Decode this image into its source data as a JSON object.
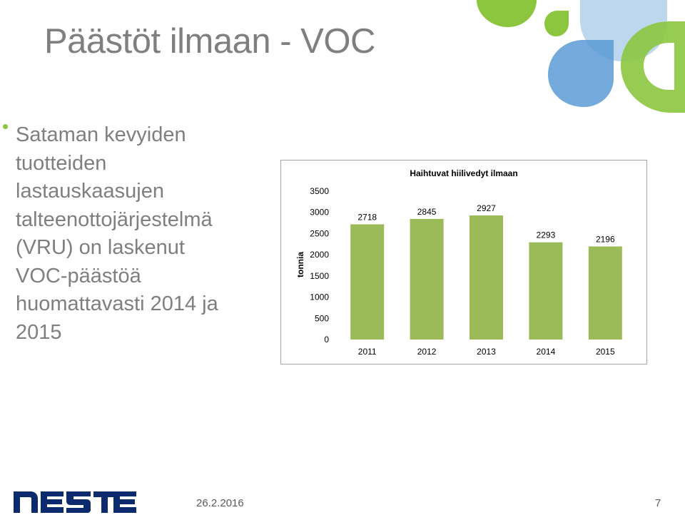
{
  "slide": {
    "title": "Päästöt ilmaan - VOC",
    "body": "Sataman kevyiden\ntuotteiden\nlastauskaasujen\ntalteenottojärjestelmä\n(VRU) on laskenut\nVOC-päästöä\nhuomattavasti 2014 ja\n2015",
    "date": "26.2.2016",
    "page_number": "7",
    "logo_text": "NESTE"
  },
  "colors": {
    "bar": "#9bbb59",
    "title": "#7f7f7f",
    "logo": "#0c2a6e",
    "accent_green": "#8cc63f",
    "accent_blue": "#5b9bd5"
  },
  "chart_data": {
    "type": "bar",
    "title": "Haihtuvat hiilivedyt ilmaan",
    "xlabel": "",
    "ylabel": "tonnia",
    "categories": [
      "2011",
      "2012",
      "2013",
      "2014",
      "2015"
    ],
    "values": [
      2718,
      2845,
      2927,
      2293,
      2196
    ],
    "data_labels": [
      "2718",
      "2845",
      "2927",
      "2293",
      "2196"
    ],
    "ylim": [
      0,
      3500
    ],
    "yticks": [
      0,
      500,
      1000,
      1500,
      2000,
      2500,
      3000,
      3500
    ],
    "grid": false,
    "legend": "none"
  }
}
